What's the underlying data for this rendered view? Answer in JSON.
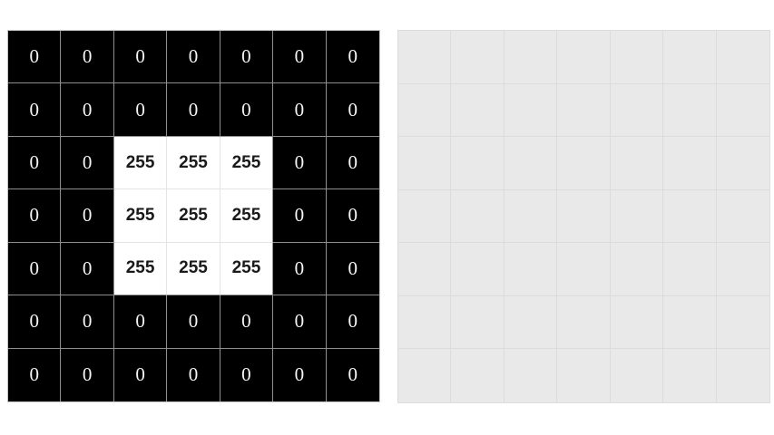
{
  "canvas": {
    "background": "#ffffff"
  },
  "input_matrix": {
    "zero_value": "0",
    "white_value": "255",
    "rows": [
      [
        "0",
        "0",
        "0",
        "0",
        "0",
        "0",
        "0"
      ],
      [
        "0",
        "0",
        "0",
        "0",
        "0",
        "0",
        "0"
      ],
      [
        "0",
        "0",
        "255",
        "255",
        "255",
        "0",
        "0"
      ],
      [
        "0",
        "0",
        "255",
        "255",
        "255",
        "0",
        "0"
      ],
      [
        "0",
        "0",
        "255",
        "255",
        "255",
        "0",
        "0"
      ],
      [
        "0",
        "0",
        "0",
        "0",
        "0",
        "0",
        "0"
      ],
      [
        "0",
        "0",
        "0",
        "0",
        "0",
        "0",
        "0"
      ]
    ],
    "colors": {
      "zero_cell_bg": "#000000",
      "zero_cell_text": "#f5f5f5",
      "white_cell_bg": "#ffffff",
      "white_cell_text": "#1a1a1a",
      "gridline": "#8f8f8f",
      "gridline_between_white": "#e4e4e4",
      "outer_border": "#c4c4c4"
    }
  },
  "output_grid": {
    "row_count": 7,
    "col_count": 7,
    "colors": {
      "cell_bg": "#e9e9e9",
      "gridline": "#dcdcdc"
    }
  }
}
